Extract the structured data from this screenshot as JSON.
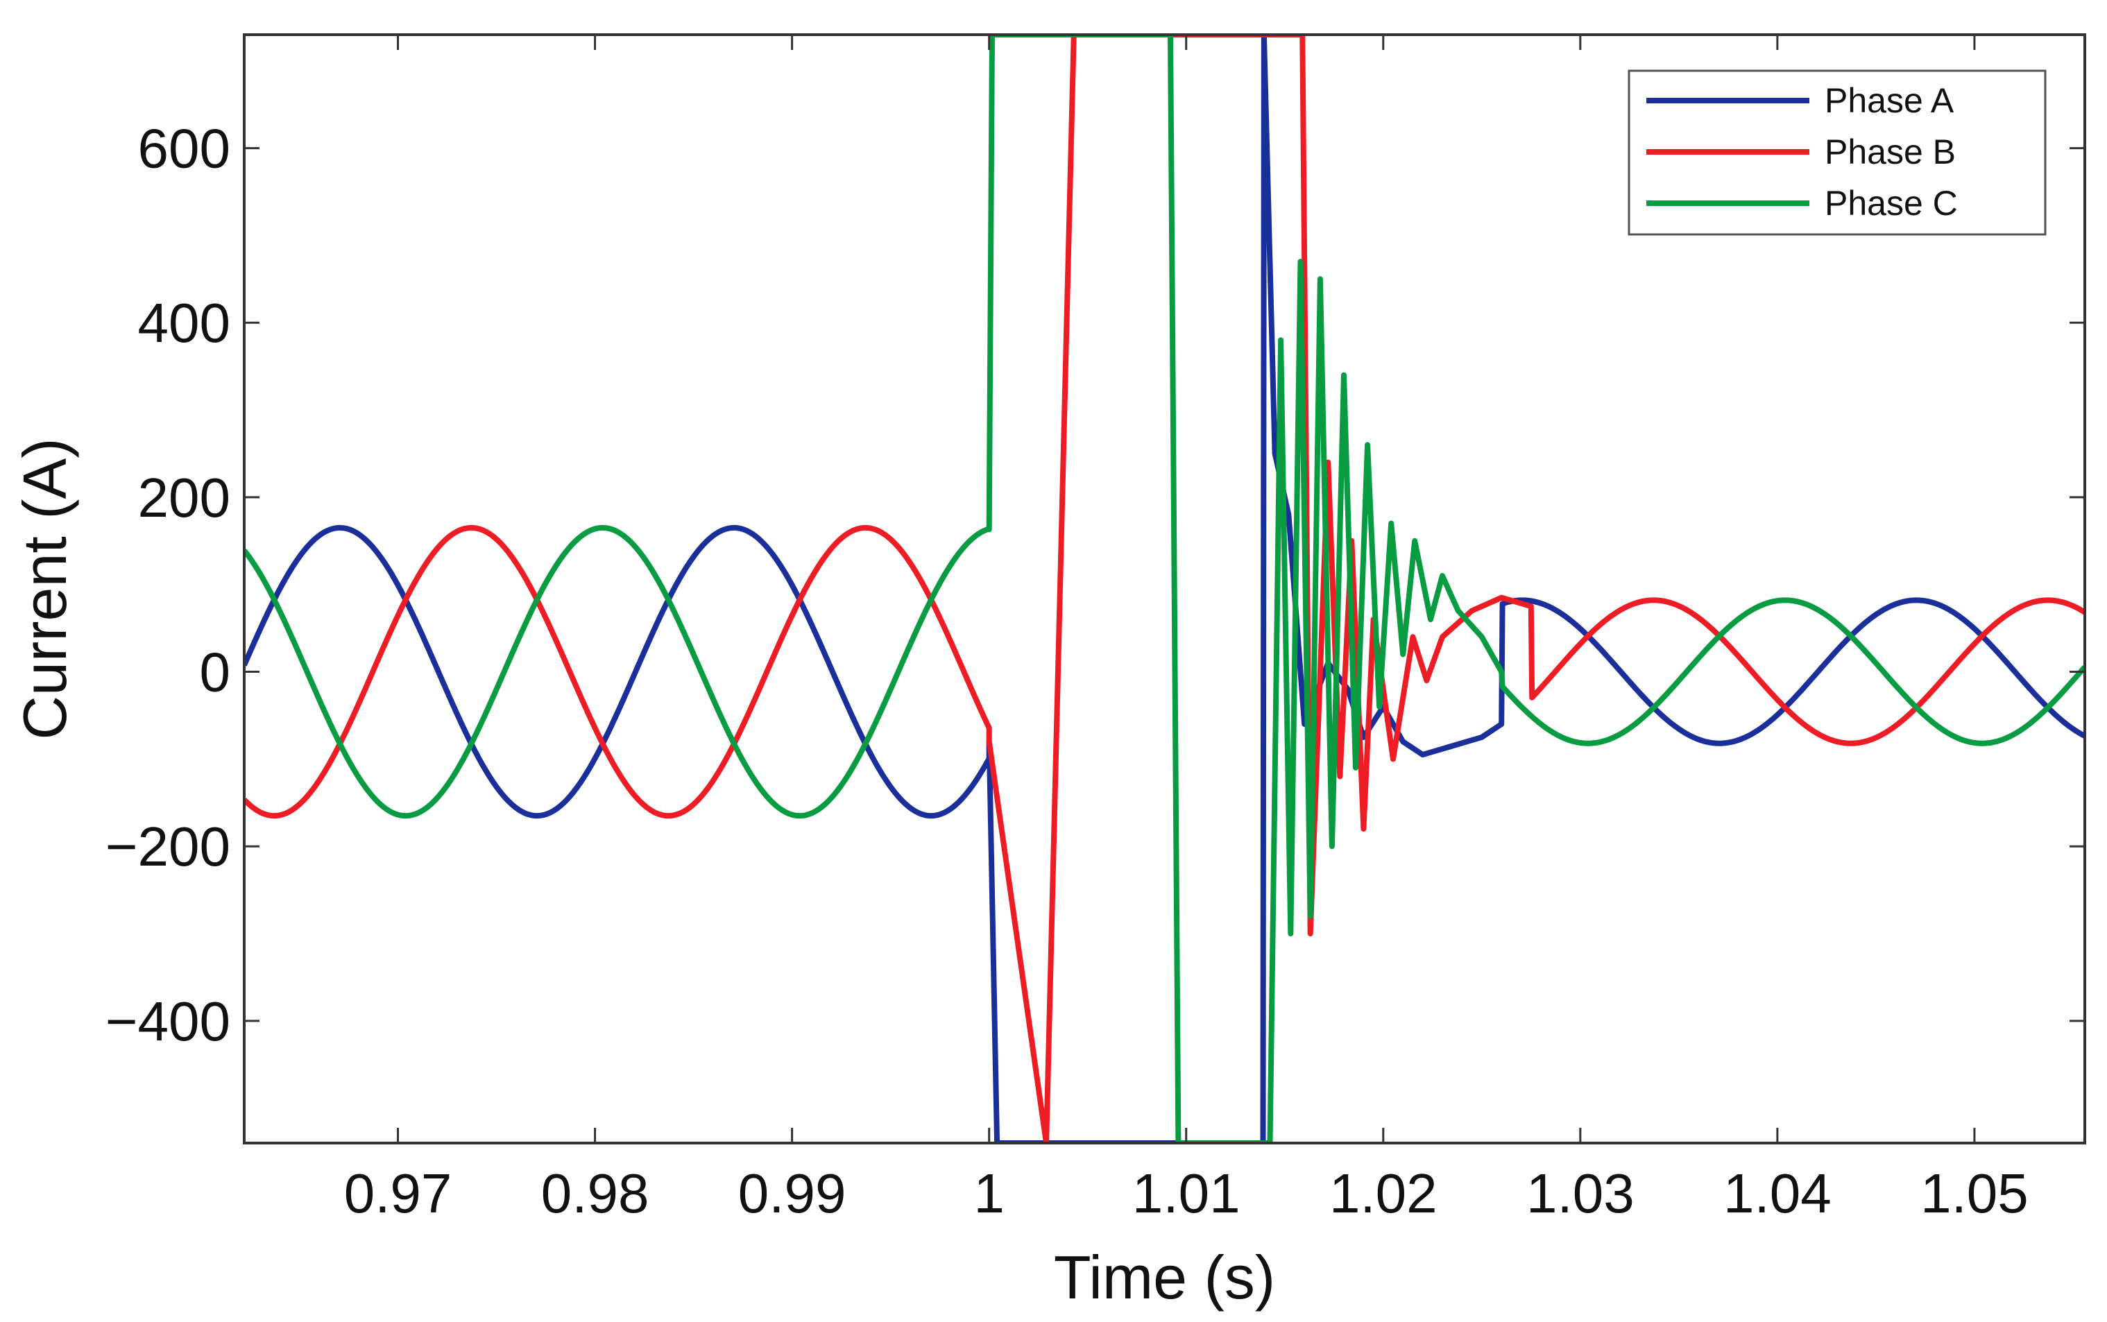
{
  "chart_data": {
    "type": "line",
    "title": "",
    "xlabel": "Time (s)",
    "ylabel": "Current (A)",
    "xlim": [
      0.9622,
      1.0556
    ],
    "ylim": [
      -540,
      730
    ],
    "xticks": [
      0.97,
      0.98,
      0.99,
      1,
      1.01,
      1.02,
      1.03,
      1.04,
      1.05
    ],
    "xtick_labels": [
      "0.97",
      "0.98",
      "0.99",
      "1",
      "1.01",
      "1.02",
      "1.03",
      "1.04",
      "1.05"
    ],
    "yticks": [
      -400,
      -200,
      0,
      200,
      400,
      600
    ],
    "ytick_labels": [
      "−400",
      "−200",
      "0",
      "200",
      "400",
      "600"
    ],
    "grid": false,
    "legend_position": "top-right",
    "segments": {
      "pre_fault": {
        "x_start": 0.9622,
        "x_end": 1.0,
        "amplitude": 165,
        "frequency_hz": 50
      },
      "post_fault": {
        "x_start": 1.025,
        "x_end": 1.0556,
        "amplitude": 82,
        "frequency_hz": 50
      },
      "fault_instant": 1.0,
      "clearing_instant": 1.0145
    },
    "series": [
      {
        "name": "Phase A",
        "color": "#1a2f9a",
        "phase_deg": -37,
        "transient_points": [
          [
            1.0,
            -80
          ],
          [
            1.0004,
            -540
          ],
          [
            1.0139,
            -540
          ],
          [
            1.01395,
            730
          ],
          [
            1.0145,
            250
          ],
          [
            1.0152,
            180
          ],
          [
            1.016,
            -60
          ],
          [
            1.0172,
            10
          ],
          [
            1.0182,
            -20
          ],
          [
            1.019,
            -75
          ],
          [
            1.02,
            -40
          ],
          [
            1.021,
            -80
          ],
          [
            1.022,
            -95
          ],
          [
            1.0235,
            -85
          ],
          [
            1.025,
            -75
          ],
          [
            1.026,
            -60
          ]
        ]
      },
      {
        "name": "Phase B",
        "color": "#ee1c24",
        "phase_deg": -157,
        "transient_points": [
          [
            1.0,
            -80
          ],
          [
            1.0029,
            -540
          ],
          [
            1.0043,
            730
          ],
          [
            1.0159,
            730
          ],
          [
            1.0163,
            -300
          ],
          [
            1.0172,
            240
          ],
          [
            1.0178,
            -120
          ],
          [
            1.0184,
            150
          ],
          [
            1.019,
            -180
          ],
          [
            1.0195,
            60
          ],
          [
            1.0205,
            -100
          ],
          [
            1.0215,
            40
          ],
          [
            1.0222,
            -10
          ],
          [
            1.023,
            40
          ],
          [
            1.0245,
            70
          ],
          [
            1.026,
            85
          ],
          [
            1.0275,
            75
          ]
        ]
      },
      {
        "name": "Phase C",
        "color": "#089c42",
        "phase_deg": 83,
        "transient_points": [
          [
            1.0,
            163
          ],
          [
            1.00015,
            730
          ],
          [
            1.0092,
            730
          ],
          [
            1.0096,
            -540
          ],
          [
            1.01425,
            -540
          ],
          [
            1.0148,
            380
          ],
          [
            1.0153,
            -300
          ],
          [
            1.0158,
            470
          ],
          [
            1.0163,
            -280
          ],
          [
            1.0168,
            450
          ],
          [
            1.0174,
            -200
          ],
          [
            1.018,
            340
          ],
          [
            1.0186,
            -110
          ],
          [
            1.0192,
            260
          ],
          [
            1.0198,
            -40
          ],
          [
            1.0204,
            170
          ],
          [
            1.021,
            20
          ],
          [
            1.0216,
            150
          ],
          [
            1.0224,
            60
          ],
          [
            1.023,
            110
          ],
          [
            1.0238,
            70
          ],
          [
            1.025,
            40
          ],
          [
            1.026,
            0
          ]
        ]
      }
    ]
  }
}
